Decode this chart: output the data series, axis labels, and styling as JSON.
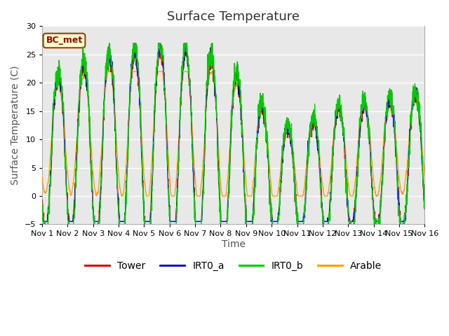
{
  "title": "Surface Temperature",
  "ylabel": "Surface Temperature (C)",
  "xlabel": "Time",
  "ylim": [
    -5,
    30
  ],
  "xlim": [
    0,
    15
  ],
  "yticks": [
    -5,
    0,
    5,
    10,
    15,
    20,
    25,
    30
  ],
  "xtick_labels": [
    "Nov 1",
    "Nov 2",
    "Nov 3",
    "Nov 4",
    "Nov 5",
    "Nov 6",
    "Nov 7",
    "Nov 8",
    "Nov 9",
    "Nov 10",
    "Nov 11",
    "Nov 12",
    "Nov 13",
    "Nov 14",
    "Nov 15",
    "Nov 16"
  ],
  "colors": {
    "Tower": "#dd0000",
    "IRT0_a": "#0000cc",
    "IRT0_b": "#00cc00",
    "Arable": "#ff9900"
  },
  "annotation_text": "BC_met",
  "annotation_bg": "#ffffcc",
  "annotation_border": "#8B4513",
  "axes_bg": "#e8e8e8",
  "grid_color": "#ffffff",
  "title_fontsize": 13,
  "axis_label_fontsize": 10,
  "tick_fontsize": 8,
  "legend_fontsize": 10
}
